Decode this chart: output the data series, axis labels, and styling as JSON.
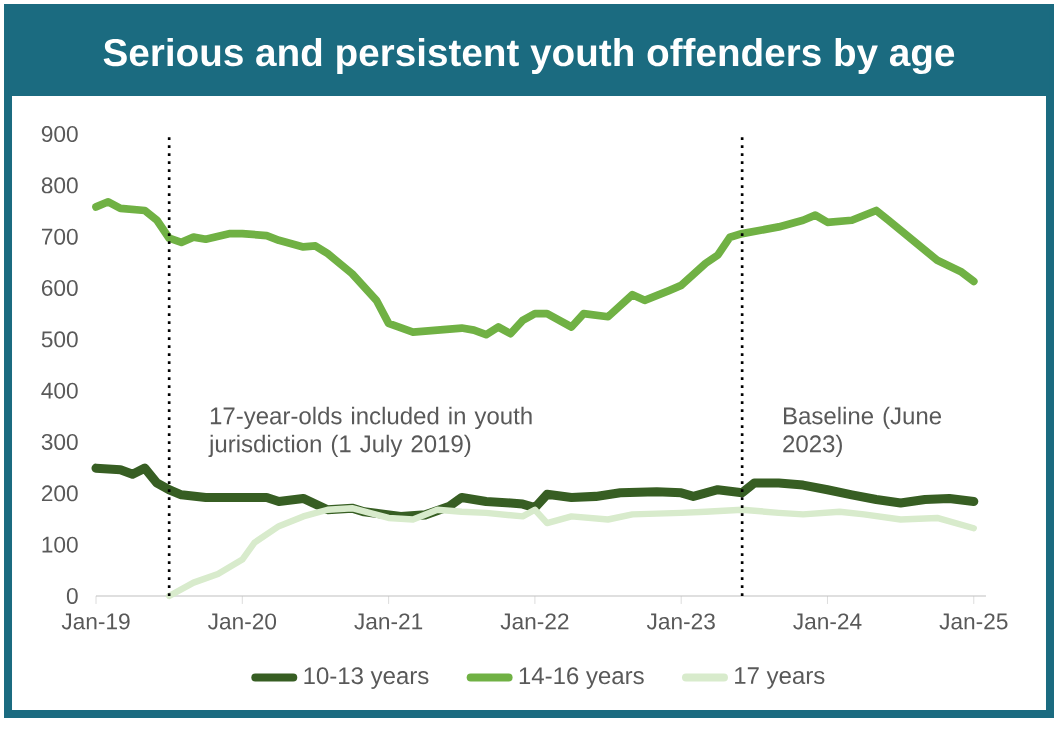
{
  "chart_data": {
    "type": "line",
    "title": "Serious and persistent youth offenders by age",
    "xlim": [
      "2019-01",
      "2025-02"
    ],
    "ylim": [
      0,
      900
    ],
    "xticks": [
      {
        "value": "2019-01",
        "label": "Jan-19"
      },
      {
        "value": "2020-01",
        "label": "Jan-20"
      },
      {
        "value": "2021-01",
        "label": "Jan-21"
      },
      {
        "value": "2022-01",
        "label": "Jan-22"
      },
      {
        "value": "2023-01",
        "label": "Jan-23"
      },
      {
        "value": "2024-01",
        "label": "Jan-24"
      },
      {
        "value": "2025-01",
        "label": "Jan-25"
      }
    ],
    "yticks": [
      0,
      100,
      200,
      300,
      400,
      500,
      600,
      700,
      800,
      900
    ],
    "legend": "bottom",
    "ref_lines": [
      {
        "axis": "x",
        "value": "2019-07",
        "label": "17-year-olds included in youth jurisdiction (1 July 2019)",
        "color": "#000000",
        "line_style": "dotted"
      },
      {
        "axis": "x",
        "value": "2023-06",
        "label": "Baseline (June 2023)",
        "color": "#000000",
        "line_style": "dotted"
      }
    ],
    "series": [
      {
        "name": "10-13 years",
        "color": "#375e23",
        "x": [
          "2019-01",
          "2019-03",
          "2019-04",
          "2019-05",
          "2019-06",
          "2019-07",
          "2019-08",
          "2019-10",
          "2020-01",
          "2020-03",
          "2020-04",
          "2020-06",
          "2020-08",
          "2020-10",
          "2020-11",
          "2021-02",
          "2021-04",
          "2021-06",
          "2021-07",
          "2021-09",
          "2021-11",
          "2021-12",
          "2022-01",
          "2022-02",
          "2022-04",
          "2022-06",
          "2022-08",
          "2022-11",
          "2023-01",
          "2023-02",
          "2023-04",
          "2023-06",
          "2023-07",
          "2023-09",
          "2023-11",
          "2024-01",
          "2024-03",
          "2024-05",
          "2024-07",
          "2024-09",
          "2024-11",
          "2025-01"
        ],
        "values": [
          249,
          246,
          237,
          249,
          220,
          207,
          197,
          192,
          192,
          192,
          184,
          190,
          168,
          171,
          164,
          155,
          158,
          175,
          192,
          184,
          181,
          179,
          172,
          198,
          192,
          194,
          201,
          203,
          201,
          194,
          207,
          201,
          220,
          220,
          216,
          207,
          197,
          188,
          181,
          188,
          190,
          184
        ]
      },
      {
        "name": "14-16 years",
        "color": "#70b144",
        "x": [
          "2019-01",
          "2019-02",
          "2019-03",
          "2019-05",
          "2019-06",
          "2019-07",
          "2019-08",
          "2019-09",
          "2019-10",
          "2019-12",
          "2020-01",
          "2020-03",
          "2020-04",
          "2020-06",
          "2020-07",
          "2020-08",
          "2020-10",
          "2020-12",
          "2021-01",
          "2021-03",
          "2021-05",
          "2021-07",
          "2021-08",
          "2021-09",
          "2021-10",
          "2021-11",
          "2021-12",
          "2022-01",
          "2022-02",
          "2022-04",
          "2022-05",
          "2022-07",
          "2022-09",
          "2022-10",
          "2022-12",
          "2023-01",
          "2023-03",
          "2023-04",
          "2023-05",
          "2023-06",
          "2023-09",
          "2023-11",
          "2023-12",
          "2024-01",
          "2024-03",
          "2024-05",
          "2024-06",
          "2024-08",
          "2024-10",
          "2024-12",
          "2025-01"
        ],
        "values": [
          758,
          768,
          755,
          751,
          732,
          697,
          689,
          699,
          695,
          706,
          706,
          702,
          693,
          680,
          682,
          667,
          628,
          576,
          531,
          514,
          518,
          522,
          518,
          509,
          524,
          511,
          537,
          550,
          550,
          524,
          550,
          544,
          587,
          576,
          595,
          605,
          648,
          664,
          699,
          706,
          719,
          732,
          742,
          728,
          732,
          751,
          732,
          693,
          654,
          631,
          613
        ]
      },
      {
        "name": "17 years",
        "color": "#d8ebcc",
        "x": [
          "2019-07",
          "2019-09",
          "2019-11",
          "2020-01",
          "2020-02",
          "2020-04",
          "2020-06",
          "2020-08",
          "2020-10",
          "2021-01",
          "2021-03",
          "2021-05",
          "2021-07",
          "2021-09",
          "2021-12",
          "2022-01",
          "2022-02",
          "2022-04",
          "2022-07",
          "2022-09",
          "2023-01",
          "2023-03",
          "2023-06",
          "2023-09",
          "2023-11",
          "2024-02",
          "2024-04",
          "2024-07",
          "2024-10",
          "2025-01"
        ],
        "values": [
          0,
          26,
          43,
          71,
          104,
          136,
          155,
          168,
          171,
          152,
          149,
          168,
          164,
          162,
          155,
          168,
          142,
          155,
          149,
          159,
          162,
          164,
          168,
          162,
          159,
          164,
          159,
          149,
          152,
          132
        ]
      }
    ]
  }
}
